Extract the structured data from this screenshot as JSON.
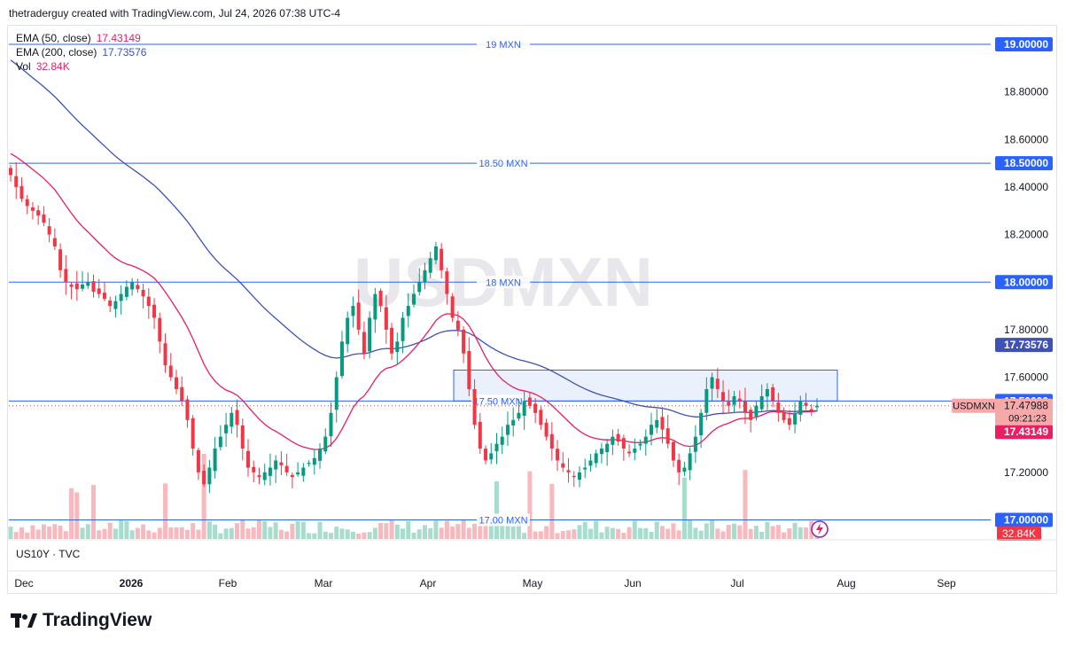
{
  "header": {
    "credit": "thetraderguy created with TradingView.com, Jul 24, 2026 07:38 UTC-4"
  },
  "watermark": "USDMXN",
  "legend": [
    {
      "label": "EMA (50, close)",
      "value": "17.43149",
      "color": "#e91e63"
    },
    {
      "label": "EMA (200, close)",
      "value": "17.73576",
      "color": "#3f51b5"
    },
    {
      "label": "Vol",
      "value": "32.84K",
      "color": "#e91e63"
    }
  ],
  "subpane_label": "US10Y · TVC",
  "logo_text": "TradingView",
  "colors": {
    "up": "#089981",
    "down": "#f23645",
    "ema50": "#e91e63",
    "ema200": "#3f51b5",
    "hline": "#2962ff",
    "box_fill": "#e8eefc",
    "price_tag": "#f7a9a9"
  },
  "chart_data": {
    "type": "candlestick",
    "symbol": "USDMXN",
    "ylim": [
      17.0,
      19.1
    ],
    "y_ticks": [
      "19.00000",
      "18.80000",
      "18.60000",
      "18.50000",
      "18.40000",
      "18.20000",
      "18.00000",
      "17.80000",
      "17.73576",
      "17.60000",
      "17.50000",
      "17.47988",
      "17.43149",
      "17.20000",
      "17.00000"
    ],
    "x_ticks": [
      "Dec",
      "2026",
      "Feb",
      "Mar",
      "Apr",
      "May",
      "Jun",
      "Jul",
      "Aug",
      "Sep"
    ],
    "horizontal_lines": [
      {
        "price": 19.0,
        "label": "19 MXN",
        "axis_label": "19.00000"
      },
      {
        "price": 18.5,
        "label": "18.50 MXN",
        "axis_label": "18.50000"
      },
      {
        "price": 18.0,
        "label": "18 MXN",
        "axis_label": "18.00000"
      },
      {
        "price": 17.5,
        "label": "17.50 MXN",
        "axis_label": "17.50000"
      },
      {
        "price": 17.0,
        "label": "17.00 MXN",
        "axis_label": "17.00000"
      }
    ],
    "zone": {
      "from_date": "2026-04-10",
      "to_date": "2026-07-28",
      "low": 17.5,
      "high": 17.63
    },
    "last_price": {
      "symbol": "USDMXN",
      "price": "17.47988",
      "countdown": "09:21:23"
    },
    "ema50_last": "17.43149",
    "ema200_last": "17.73576",
    "volume_last": "32.84K",
    "close_series": [
      18.45,
      18.4,
      18.35,
      18.32,
      18.3,
      18.28,
      18.25,
      18.2,
      18.15,
      18.05,
      18.0,
      17.98,
      17.97,
      17.99,
      18.0,
      17.96,
      17.95,
      17.93,
      17.9,
      17.92,
      17.95,
      17.98,
      18.0,
      17.97,
      17.94,
      17.9,
      17.85,
      17.75,
      17.65,
      17.6,
      17.55,
      17.5,
      17.42,
      17.3,
      17.2,
      17.15,
      17.22,
      17.3,
      17.35,
      17.4,
      17.45,
      17.4,
      17.3,
      17.22,
      17.2,
      17.18,
      17.2,
      17.22,
      17.25,
      17.23,
      17.2,
      17.18,
      17.2,
      17.22,
      17.24,
      17.26,
      17.3,
      17.35,
      17.45,
      17.6,
      17.75,
      17.85,
      17.9,
      17.8,
      17.7,
      17.85,
      17.95,
      17.9,
      17.8,
      17.7,
      17.75,
      17.85,
      17.9,
      17.95,
      18.0,
      18.05,
      18.1,
      18.15,
      18.05,
      17.95,
      17.85,
      17.8,
      17.7,
      17.55,
      17.4,
      17.3,
      17.25,
      17.28,
      17.32,
      17.35,
      17.4,
      17.42,
      17.45,
      17.5,
      17.48,
      17.45,
      17.4,
      17.35,
      17.3,
      17.25,
      17.22,
      17.2,
      17.18,
      17.2,
      17.22,
      17.25,
      17.28,
      17.3,
      17.32,
      17.35,
      17.33,
      17.3,
      17.28,
      17.3,
      17.32,
      17.35,
      17.4,
      17.42,
      17.38,
      17.32,
      17.25,
      17.2,
      17.22,
      17.28,
      17.35,
      17.45,
      17.55,
      17.6,
      17.55,
      17.5,
      17.48,
      17.52,
      17.5,
      17.45,
      17.42,
      17.48,
      17.52,
      17.55,
      17.5,
      17.45,
      17.42,
      17.4,
      17.45,
      17.5,
      17.48,
      17.46,
      17.48
    ]
  }
}
